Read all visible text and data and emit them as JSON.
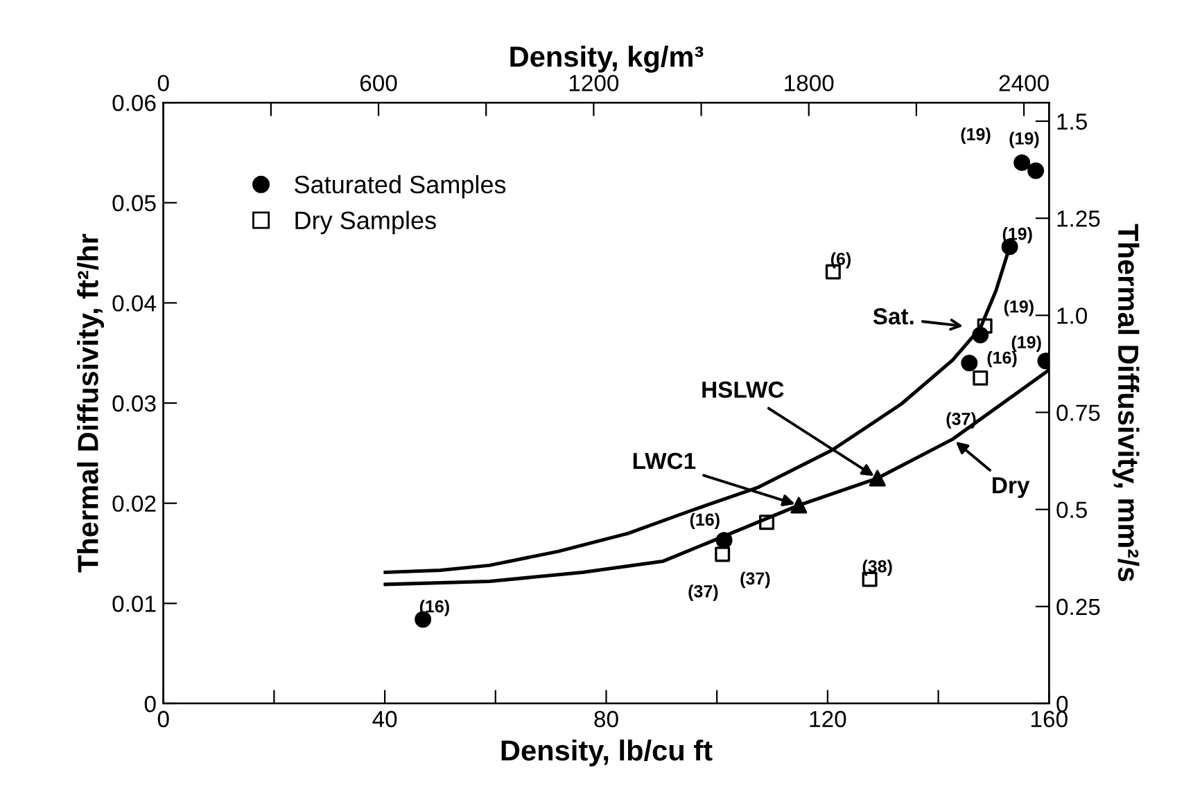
{
  "chart_data": {
    "type": "scatter",
    "xlabel": "Density, lb/cu ft",
    "ylabel": "Thermal Diffusivity, ft²/hr",
    "y2label": "Thermal Diffusivity, mm²/s",
    "x2label": "Density, kg/m³",
    "xlim": [
      0,
      160
    ],
    "xticks": [
      0,
      {
        "value": 20,
        "label": null
      },
      40,
      {
        "value": 60,
        "label": null
      },
      80,
      {
        "value": 100,
        "label": null
      },
      120,
      {
        "value": 140,
        "label": null
      },
      160
    ],
    "ylim": [
      0,
      0.06
    ],
    "yticks": [
      0,
      0.01,
      0.02,
      0.03,
      0.04,
      0.05,
      0.06
    ],
    "y2lim": [
      0,
      1.548
    ],
    "y2ticks": [
      0,
      0.25,
      0.5,
      0.75,
      {
        "value": 1,
        "label": "1.0"
      },
      1.25,
      1.5
    ],
    "x2lim": [
      0,
      2470
    ],
    "x2ticks": [
      0,
      {
        "value": 300,
        "label": null
      },
      600,
      {
        "value": 900,
        "label": null
      },
      1200,
      {
        "value": 1500,
        "label": null
      },
      1800,
      {
        "value": 2100,
        "label": null
      },
      2400
    ],
    "legend": "top left",
    "grid": false,
    "series": [
      {
        "name": "Saturated Samples",
        "marker": "circle",
        "color": "#000000",
        "x": [
          46.9,
          101.3,
          152.9,
          147.6,
          145.6,
          155.1,
          157.6,
          159.4
        ],
        "values": [
          0.0084,
          0.0163,
          0.0456,
          0.0368,
          0.034,
          0.054,
          0.0532,
          0.0342
        ]
      },
      {
        "name": "Dry Samples",
        "marker": "square",
        "color": "#000000",
        "x": [
          101,
          109,
          127.6,
          121,
          147.6,
          148.4
        ],
        "values": [
          0.0149,
          0.0181,
          0.0124,
          0.0431,
          0.0325,
          0.0377
        ]
      },
      {
        "marker": "triangle",
        "color": "#000000",
        "x": [
          114.8,
          129
        ],
        "values": [
          0.0198,
          0.0225
        ]
      },
      {
        "type": "line",
        "color": "#000000",
        "x": [
          40.1,
          50,
          58.9,
          71.4,
          84,
          95,
          107.5,
          120.8,
          133.3,
          142.6,
          147.6,
          150.4,
          152.9
        ],
        "values": [
          0.0131,
          0.0133,
          0.0138,
          0.0152,
          0.017,
          0.0192,
          0.0216,
          0.0253,
          0.0299,
          0.0343,
          0.0375,
          0.0412,
          0.0456
        ]
      },
      {
        "type": "line",
        "color": "#000000",
        "x": [
          40.1,
          58.9,
          75.7,
          90.2,
          100.8,
          114.8,
          129,
          142.6,
          160
        ],
        "values": [
          0.0119,
          0.0122,
          0.0131,
          0.0142,
          0.0166,
          0.0198,
          0.0225,
          0.0264,
          0.0333
        ]
      }
    ],
    "annotations": [
      {
        "text": "Sat.",
        "x": 147.6,
        "y": 0.0375
      },
      {
        "text": "Dry",
        "x": 142.6,
        "y": 0.0264
      },
      {
        "text": "HSLWC",
        "x": 129,
        "y": 0.0225
      },
      {
        "text": "LWC1",
        "x": 114.8,
        "y": 0.0198
      },
      {
        "text": "(16)",
        "x": 46.9,
        "y": 0.0084
      },
      {
        "text": "(16)",
        "x": 101.3,
        "y": 0.0163
      },
      {
        "text": "(37)",
        "x": 101,
        "y": 0.0149
      },
      {
        "text": "(37)",
        "x": 109,
        "y": 0.0181
      },
      {
        "text": "(38)",
        "x": 127.6,
        "y": 0.0124
      },
      {
        "text": "(6)",
        "x": 121,
        "y": 0.0431
      },
      {
        "text": "(19)",
        "x": 152.9,
        "y": 0.0456
      },
      {
        "text": "(19)",
        "x": 147.6,
        "y": 0.0368
      },
      {
        "text": "(16)",
        "x": 145.6,
        "y": 0.034
      },
      {
        "text": "(37)",
        "x": 147.6,
        "y": 0.0325
      },
      {
        "text": "(19)",
        "x": 155.1,
        "y": 0.054
      },
      {
        "text": "(19)",
        "x": 157.6,
        "y": 0.0532
      },
      {
        "text": "(19)",
        "x": 159.4,
        "y": 0.0342
      }
    ]
  }
}
